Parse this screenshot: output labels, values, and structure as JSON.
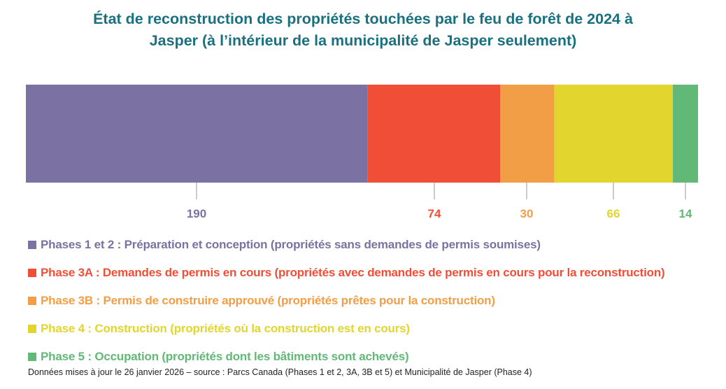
{
  "chart_data": {
    "type": "bar",
    "orientation": "horizontal-stacked",
    "title_line1": "État de reconstruction des propriétés touchées par le feu de forêt de 2024 à",
    "title_line2": "Jasper (à l’intérieur de la municipalité de Jasper seulement)",
    "series": [
      {
        "name": "Phases 1 et 2 : Préparation et conception (propriétés sans demandes de permis soumises)",
        "value": 190,
        "color": "#7b72a3"
      },
      {
        "name": "Phase 3A : Demandes de permis en cours (propriétés avec demandes de permis en cours pour la reconstruction)",
        "value": 74,
        "color": "#f04e37"
      },
      {
        "name": "Phase 3B : Permis de construire approuvé (propriétés prêtes pour la construction)",
        "value": 30,
        "color": "#f29e47"
      },
      {
        "name": "Phase 4 : Construction (propriétés où la construction est en cours)",
        "value": 66,
        "color": "#e2d52e"
      },
      {
        "name": "Phase 5 : Occupation (propriétés dont les bâtiments sont achevés)",
        "value": 14,
        "color": "#62b877"
      }
    ],
    "legend_position": "bottom",
    "grid": false
  },
  "footer": "Données mises à jour le 26 janvier 2026 – source : Parcs Canada (Phases 1 et 2, 3A, 3B et 5) et Municipalité de Jasper (Phase 4)",
  "title_color": "#19707f"
}
